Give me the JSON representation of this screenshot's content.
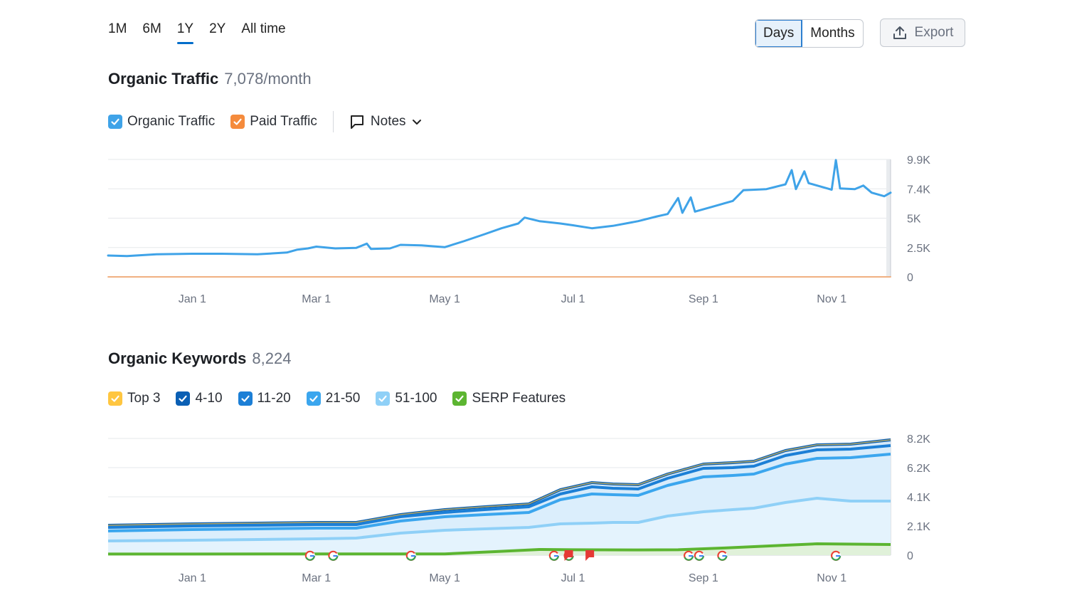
{
  "range_tabs": [
    {
      "label": "1M",
      "active": false
    },
    {
      "label": "6M",
      "active": false
    },
    {
      "label": "1Y",
      "active": true
    },
    {
      "label": "2Y",
      "active": false
    },
    {
      "label": "All time",
      "active": false
    }
  ],
  "view_toggle": {
    "days": "Days",
    "months": "Months",
    "selected": "Days"
  },
  "export_label": "Export",
  "traffic": {
    "title": "Organic Traffic",
    "value": "7,078/month",
    "legend": [
      {
        "label": "Organic Traffic",
        "color": "#3fa3e8",
        "checked": true
      },
      {
        "label": "Paid Traffic",
        "color": "#f58b3c",
        "checked": true
      }
    ],
    "notes_label": "Notes"
  },
  "keywords": {
    "title": "Organic Keywords",
    "value": "8,224",
    "legend": [
      {
        "label": "Top 3",
        "color": "#ffc640",
        "checked": true
      },
      {
        "label": "4-10",
        "color": "#0a5fb4",
        "checked": true
      },
      {
        "label": "11-20",
        "color": "#1c7fd6",
        "checked": true
      },
      {
        "label": "21-50",
        "color": "#3ba6ee",
        "checked": true
      },
      {
        "label": "51-100",
        "color": "#8fd0f7",
        "checked": true
      },
      {
        "label": "SERP Features",
        "color": "#5cb531",
        "checked": true
      }
    ]
  },
  "chart_data": [
    {
      "type": "line",
      "x_ticks": [
        "Jan 1",
        "Mar 1",
        "May 1",
        "Jul 1",
        "Sep 1",
        "Nov 1"
      ],
      "y_ticks": [
        "9.9K",
        "7.4K",
        "5K",
        "2.5K",
        "0"
      ],
      "ylim": [
        0,
        9900
      ],
      "grid": true,
      "series": [
        {
          "name": "Organic Traffic",
          "color": "#3fa3e8",
          "points": [
            [
              "2022-11-22",
              1800
            ],
            [
              "2022-12-01",
              1750
            ],
            [
              "2022-12-15",
              1900
            ],
            [
              "2023-01-01",
              1950
            ],
            [
              "2023-01-15",
              1950
            ],
            [
              "2023-02-01",
              1900
            ],
            [
              "2023-02-15",
              2050
            ],
            [
              "2023-02-20",
              2300
            ],
            [
              "2023-02-25",
              2400
            ],
            [
              "2023-03-01",
              2550
            ],
            [
              "2023-03-10",
              2400
            ],
            [
              "2023-03-20",
              2450
            ],
            [
              "2023-03-25",
              2800
            ],
            [
              "2023-03-27",
              2350
            ],
            [
              "2023-04-05",
              2400
            ],
            [
              "2023-04-10",
              2700
            ],
            [
              "2023-04-20",
              2650
            ],
            [
              "2023-05-01",
              2500
            ],
            [
              "2023-05-10",
              3000
            ],
            [
              "2023-05-20",
              3600
            ],
            [
              "2023-05-28",
              4100
            ],
            [
              "2023-06-05",
              4500
            ],
            [
              "2023-06-08",
              5000
            ],
            [
              "2023-06-15",
              4700
            ],
            [
              "2023-06-25",
              4500
            ],
            [
              "2023-07-01",
              4350
            ],
            [
              "2023-07-10",
              4100
            ],
            [
              "2023-07-20",
              4300
            ],
            [
              "2023-08-01",
              4700
            ],
            [
              "2023-08-10",
              5100
            ],
            [
              "2023-08-15",
              5300
            ],
            [
              "2023-08-20",
              6650
            ],
            [
              "2023-08-22",
              5400
            ],
            [
              "2023-08-26",
              6700
            ],
            [
              "2023-08-28",
              5500
            ],
            [
              "2023-09-05",
              5900
            ],
            [
              "2023-09-15",
              6400
            ],
            [
              "2023-09-20",
              7300
            ],
            [
              "2023-10-01",
              7400
            ],
            [
              "2023-10-10",
              7800
            ],
            [
              "2023-10-13",
              9000
            ],
            [
              "2023-10-15",
              7400
            ],
            [
              "2023-10-19",
              8900
            ],
            [
              "2023-10-21",
              7900
            ],
            [
              "2023-10-30",
              7450
            ],
            [
              "2023-11-01",
              7350
            ],
            [
              "2023-11-03",
              9850
            ],
            [
              "2023-11-05",
              7450
            ],
            [
              "2023-11-12",
              7400
            ],
            [
              "2023-11-16",
              7700
            ],
            [
              "2023-11-20",
              7100
            ],
            [
              "2023-11-26",
              6800
            ],
            [
              "2023-11-29",
              7100
            ]
          ]
        },
        {
          "name": "Paid Traffic",
          "color": "#f58b3c",
          "points": [
            [
              "2022-11-22",
              0
            ],
            [
              "2023-11-29",
              0
            ]
          ]
        }
      ]
    },
    {
      "type": "area",
      "x_ticks": [
        "Jan 1",
        "Mar 1",
        "May 1",
        "Jul 1",
        "Sep 1",
        "Nov 1"
      ],
      "y_ticks": [
        "8.2K",
        "6.2K",
        "4.1K",
        "2.1K",
        "0"
      ],
      "ylim": [
        0,
        8200
      ],
      "grid": true,
      "series": [
        {
          "name": "4-10",
          "color": "#0a5fb4",
          "points": [
            [
              "2022-11-22",
              2100
            ],
            [
              "2023-01-01",
              2200
            ],
            [
              "2023-02-01",
              2250
            ],
            [
              "2023-03-01",
              2300
            ],
            [
              "2023-03-20",
              2300
            ],
            [
              "2023-04-10",
              2850
            ],
            [
              "2023-05-01",
              3200
            ],
            [
              "2023-05-20",
              3400
            ],
            [
              "2023-06-10",
              3600
            ],
            [
              "2023-06-25",
              4600
            ],
            [
              "2023-07-10",
              5100
            ],
            [
              "2023-07-20",
              5000
            ],
            [
              "2023-08-01",
              4950
            ],
            [
              "2023-08-15",
              5700
            ],
            [
              "2023-09-01",
              6400
            ],
            [
              "2023-09-15",
              6500
            ],
            [
              "2023-09-25",
              6600
            ],
            [
              "2023-10-10",
              7350
            ],
            [
              "2023-10-25",
              7750
            ],
            [
              "2023-11-10",
              7800
            ],
            [
              "2023-11-29",
              8100
            ]
          ]
        },
        {
          "name": "11-20",
          "color": "#1c7fd6",
          "points": [
            [
              "2022-11-22",
              1950
            ],
            [
              "2023-01-01",
              2050
            ],
            [
              "2023-02-01",
              2100
            ],
            [
              "2023-03-01",
              2150
            ],
            [
              "2023-03-20",
              2150
            ],
            [
              "2023-04-10",
              2700
            ],
            [
              "2023-05-01",
              3000
            ],
            [
              "2023-05-20",
              3200
            ],
            [
              "2023-06-10",
              3400
            ],
            [
              "2023-06-25",
              4300
            ],
            [
              "2023-07-10",
              4800
            ],
            [
              "2023-07-20",
              4700
            ],
            [
              "2023-08-01",
              4650
            ],
            [
              "2023-08-15",
              5400
            ],
            [
              "2023-09-01",
              6100
            ],
            [
              "2023-09-15",
              6150
            ],
            [
              "2023-09-25",
              6250
            ],
            [
              "2023-10-10",
              7000
            ],
            [
              "2023-10-25",
              7400
            ],
            [
              "2023-11-10",
              7450
            ],
            [
              "2023-11-29",
              7700
            ]
          ]
        },
        {
          "name": "21-50",
          "color": "#3ba6ee",
          "points": [
            [
              "2022-11-22",
              1700
            ],
            [
              "2023-01-01",
              1800
            ],
            [
              "2023-02-01",
              1850
            ],
            [
              "2023-03-01",
              1900
            ],
            [
              "2023-03-20",
              1900
            ],
            [
              "2023-04-10",
              2400
            ],
            [
              "2023-05-01",
              2700
            ],
            [
              "2023-05-20",
              2850
            ],
            [
              "2023-06-10",
              3000
            ],
            [
              "2023-06-25",
              3900
            ],
            [
              "2023-07-10",
              4300
            ],
            [
              "2023-07-20",
              4250
            ],
            [
              "2023-08-01",
              4200
            ],
            [
              "2023-08-15",
              4900
            ],
            [
              "2023-09-01",
              5500
            ],
            [
              "2023-09-15",
              5600
            ],
            [
              "2023-09-25",
              5700
            ],
            [
              "2023-10-10",
              6400
            ],
            [
              "2023-10-25",
              6800
            ],
            [
              "2023-11-10",
              6850
            ],
            [
              "2023-11-29",
              7100
            ]
          ]
        },
        {
          "name": "51-100",
          "color": "#8fd0f7",
          "points": [
            [
              "2022-11-22",
              1000
            ],
            [
              "2023-01-01",
              1050
            ],
            [
              "2023-02-01",
              1100
            ],
            [
              "2023-03-01",
              1150
            ],
            [
              "2023-03-20",
              1200
            ],
            [
              "2023-04-10",
              1550
            ],
            [
              "2023-05-01",
              1750
            ],
            [
              "2023-05-20",
              1850
            ],
            [
              "2023-06-10",
              1950
            ],
            [
              "2023-06-25",
              2200
            ],
            [
              "2023-07-10",
              2250
            ],
            [
              "2023-07-20",
              2300
            ],
            [
              "2023-08-01",
              2300
            ],
            [
              "2023-08-15",
              2750
            ],
            [
              "2023-09-01",
              3050
            ],
            [
              "2023-09-15",
              3200
            ],
            [
              "2023-09-25",
              3300
            ],
            [
              "2023-10-10",
              3700
            ],
            [
              "2023-10-25",
              4000
            ],
            [
              "2023-11-10",
              3800
            ],
            [
              "2023-11-29",
              3800
            ]
          ]
        },
        {
          "name": "SERP Features",
          "color": "#5cb531",
          "points": [
            [
              "2022-11-22",
              80
            ],
            [
              "2023-01-01",
              80
            ],
            [
              "2023-03-01",
              90
            ],
            [
              "2023-05-01",
              90
            ],
            [
              "2023-05-25",
              250
            ],
            [
              "2023-06-15",
              400
            ],
            [
              "2023-07-01",
              380
            ],
            [
              "2023-08-01",
              370
            ],
            [
              "2023-08-20",
              380
            ],
            [
              "2023-09-10",
              500
            ],
            [
              "2023-10-10",
              700
            ],
            [
              "2023-10-25",
              800
            ],
            [
              "2023-11-29",
              750
            ]
          ]
        }
      ],
      "annotations": [
        {
          "type": "google",
          "date": "2023-02-26"
        },
        {
          "type": "google",
          "date": "2023-03-09"
        },
        {
          "type": "google",
          "date": "2023-04-15"
        },
        {
          "type": "google",
          "date": "2023-06-22"
        },
        {
          "type": "google",
          "date": "2023-06-29"
        },
        {
          "type": "flag",
          "date": "2023-06-29"
        },
        {
          "type": "flag",
          "date": "2023-07-09"
        },
        {
          "type": "google",
          "date": "2023-08-25"
        },
        {
          "type": "google",
          "date": "2023-08-30"
        },
        {
          "type": "google",
          "date": "2023-09-10"
        },
        {
          "type": "google",
          "date": "2023-11-03"
        }
      ]
    }
  ]
}
